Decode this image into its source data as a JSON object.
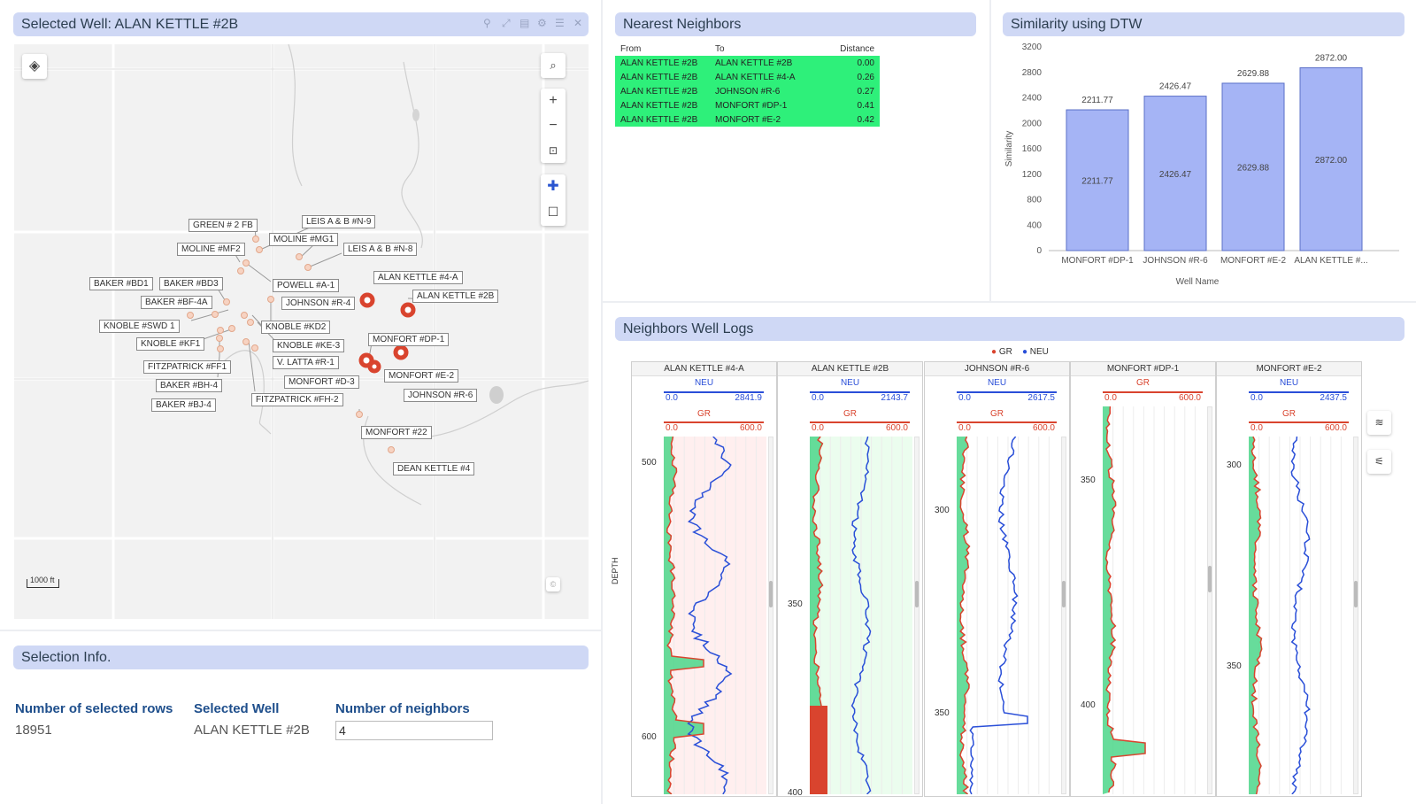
{
  "map_panel": {
    "title": "Selected Well: ALAN KETTLE #2B",
    "scale_label": "1000 ft",
    "copyright": "©",
    "labels": [
      {
        "text": "GREEN # 2 FB",
        "pos": "a"
      },
      {
        "text": "LEIS A & B #N-9",
        "pos": "b"
      },
      {
        "text": "MOLINE #MG1",
        "pos": "c"
      },
      {
        "text": "MOLINE #MF2",
        "pos": "d"
      },
      {
        "text": "LEIS A & B #N-8",
        "pos": "e"
      },
      {
        "text": "ALAN  KETTLE #4-A",
        "pos": "f"
      },
      {
        "text": "BAKER #BD1",
        "pos": "g"
      },
      {
        "text": "BAKER #BD3",
        "pos": "h"
      },
      {
        "text": "POWELL #A-1",
        "pos": "i"
      },
      {
        "text": "ALAN KETTLE #2B",
        "pos": "j"
      },
      {
        "text": "BAKER #BF-4A",
        "pos": "k"
      },
      {
        "text": "JOHNSON #R-4",
        "pos": "l"
      },
      {
        "text": "KNOBLE #SWD 1",
        "pos": "m"
      },
      {
        "text": "KNOBLE #KD2",
        "pos": "n"
      },
      {
        "text": "KNOBLE #KF1",
        "pos": "o"
      },
      {
        "text": "KNOBLE #KE-3",
        "pos": "p"
      },
      {
        "text": "MONFORT #DP-1",
        "pos": "q"
      },
      {
        "text": "FITZPATRICK #FF1",
        "pos": "r"
      },
      {
        "text": "V. LATTA #R-1",
        "pos": "s"
      },
      {
        "text": "MONFORT #E-2",
        "pos": "t"
      },
      {
        "text": "BAKER #BH-4",
        "pos": "u"
      },
      {
        "text": "MONFORT #D-3",
        "pos": "v"
      },
      {
        "text": "JOHNSON #R-6",
        "pos": "w"
      },
      {
        "text": "FITZPATRICK #FH-2",
        "pos": "x"
      },
      {
        "text": "BAKER #BJ-4",
        "pos": "y"
      },
      {
        "text": "MONFORT #22",
        "pos": "z"
      },
      {
        "text": "DEAN KETTLE #4",
        "pos": "aa"
      }
    ]
  },
  "nearest_neighbors": {
    "title": "Nearest Neighbors",
    "headers": {
      "from": "From",
      "to": "To",
      "distance": "Distance"
    },
    "rows": [
      {
        "from": "ALAN KETTLE #2B",
        "to": "ALAN KETTLE #2B",
        "distance": "0.00"
      },
      {
        "from": "ALAN KETTLE #2B",
        "to": "ALAN  KETTLE #4-A",
        "distance": "0.26"
      },
      {
        "from": "ALAN KETTLE #2B",
        "to": "JOHNSON #R-6",
        "distance": "0.27"
      },
      {
        "from": "ALAN KETTLE #2B",
        "to": "MONFORT #DP-1",
        "distance": "0.41"
      },
      {
        "from": "ALAN KETTLE #2B",
        "to": "MONFORT #E-2",
        "distance": "0.42"
      }
    ]
  },
  "similarity_panel": {
    "title": "Similarity using DTW"
  },
  "chart_data": {
    "type": "bar",
    "categories": [
      "MONFORT #DP-1",
      "JOHNSON #R-6",
      "MONFORT #E-2",
      "ALAN  KETTLE #..."
    ],
    "values": [
      2211.77,
      2426.47,
      2629.88,
      2872.0
    ],
    "value_labels": [
      "2211.77",
      "2426.47",
      "2629.88",
      "2872.00"
    ],
    "xlabel": "Well Name",
    "ylabel": "Similarity",
    "ylim": [
      0,
      3200
    ],
    "yticks": [
      0,
      400,
      800,
      1200,
      1600,
      2000,
      2400,
      2800,
      3200
    ],
    "bar_color": "#a5b4f5",
    "legend": "none",
    "grid": false
  },
  "selection_panel": {
    "title": "Selection Info.",
    "rows_label": "Number of selected rows",
    "rows_value": "18951",
    "well_label": "Selected Well",
    "well_value": "ALAN KETTLE #2B",
    "neighbors_label": "Number of neighbors",
    "neighbors_value": "4"
  },
  "logs_panel": {
    "title": "Neighbors Well Logs",
    "legend": [
      {
        "name": "GR",
        "color": "#d9442e"
      },
      {
        "name": "NEU",
        "color": "#2a4fd8"
      }
    ],
    "depth_axis_label": "DEPTH",
    "colors": {
      "gr": "#d9442e",
      "neu": "#2a4fd8",
      "fill_green": "#4cd68a"
    },
    "tracks": [
      {
        "name": "ALAN KETTLE #4-A",
        "neu_min": "0.0",
        "neu_max": "2841.9",
        "gr_min": "0.0",
        "gr_max": "600.0",
        "depths": [
          "500",
          "600"
        ]
      },
      {
        "name": "ALAN KETTLE #2B",
        "neu_min": "0.0",
        "neu_max": "2143.7",
        "gr_min": "0.0",
        "gr_max": "600.0",
        "depths": [
          "350",
          "400"
        ]
      },
      {
        "name": "JOHNSON #R-6",
        "neu_min": "0.0",
        "neu_max": "2617.5",
        "gr_min": "0.0",
        "gr_max": "600.0",
        "depths": [
          "300",
          "350"
        ]
      },
      {
        "name": "MONFORT #DP-1",
        "neu_min": "",
        "neu_max": "",
        "gr_min": "0.0",
        "gr_max": "600.0",
        "depths": [
          "350",
          "400"
        ]
      },
      {
        "name": "MONFORT #E-2",
        "neu_min": "0.0",
        "neu_max": "2437.5",
        "gr_min": "0.0",
        "gr_max": "600.0",
        "depths": [
          "300",
          "350"
        ]
      }
    ],
    "curve_labels": {
      "neu": "NEU",
      "gr": "GR"
    }
  }
}
